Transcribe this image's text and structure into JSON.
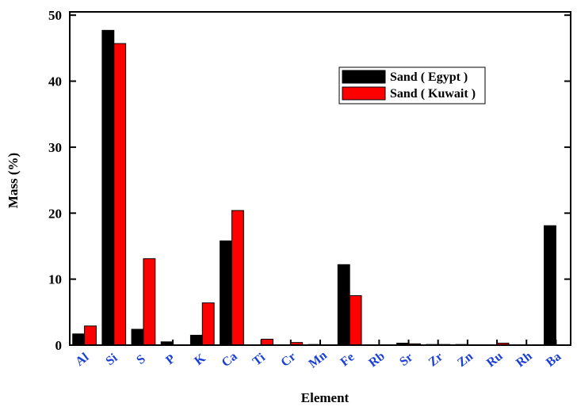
{
  "chart_data": {
    "type": "bar",
    "x_label": "Element",
    "y_label": "Mass (%)",
    "categories": [
      "Al",
      "Si",
      "S",
      "P",
      "K",
      "Ca",
      "Ti",
      "Cr",
      "Mn",
      "Fe",
      "Rb",
      "Sr",
      "Zr",
      "Zn",
      "Ru",
      "Rh",
      "Ba"
    ],
    "series": [
      {
        "name": "Sand ( Egypt )",
        "color": "#000000",
        "values": [
          1.7,
          47.7,
          2.4,
          0.5,
          1.5,
          15.8,
          0,
          0,
          0.1,
          12.2,
          0,
          0.3,
          0.1,
          0.1,
          0,
          0,
          18.1
        ]
      },
      {
        "name": "Sand ( Kuwait )",
        "color": "#ff0000",
        "values": [
          2.9,
          45.7,
          13.1,
          0,
          6.4,
          20.4,
          0.9,
          0.4,
          0,
          7.5,
          0,
          0.2,
          0.1,
          0,
          0.3,
          0,
          0
        ]
      }
    ],
    "ylim": [
      0,
      50.5
    ],
    "yticks": [
      0,
      10,
      20,
      30,
      40,
      50
    ],
    "legend": "upper right"
  }
}
